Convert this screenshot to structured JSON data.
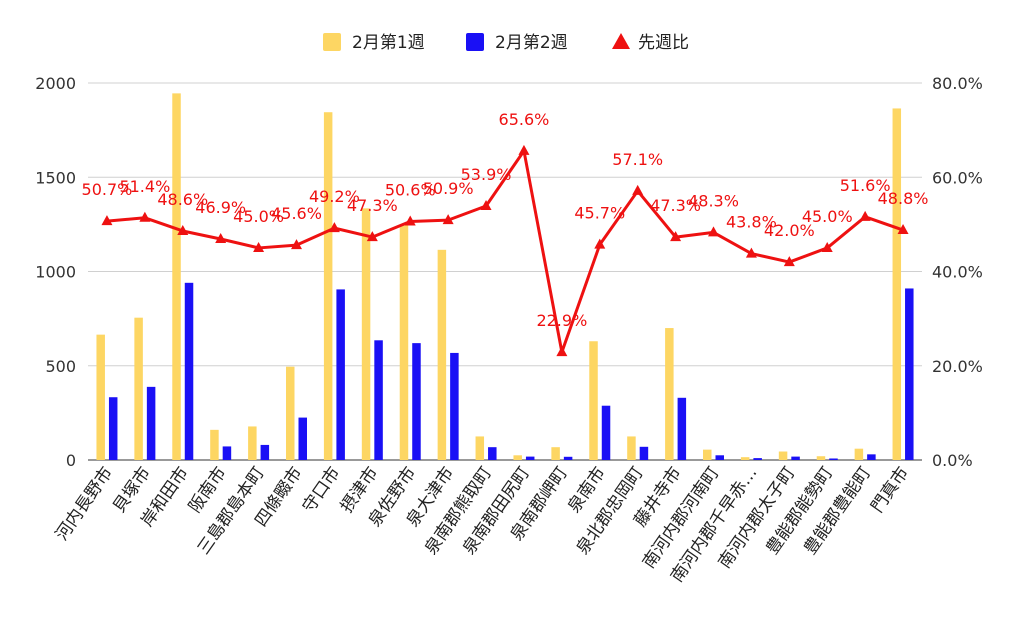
{
  "chart_data": {
    "type": "bar",
    "categories": [
      "河内長野市",
      "貝塚市",
      "岸和田市",
      "阪南市",
      "三島郡島本町",
      "四條畷市",
      "守口市",
      "摂津市",
      "泉佐野市",
      "泉大津市",
      "泉南郡熊取町",
      "泉南郡田尻町",
      "泉南郡岬町",
      "泉南市",
      "泉北郡忠岡町",
      "藤井寺市",
      "南河内郡河南町",
      "南河内郡千早赤…",
      "南河内郡太子町",
      "豊能郡能勢町",
      "豊能郡豊能町",
      "門真市"
    ],
    "series": [
      {
        "name": "2月第1週",
        "type": "bar",
        "axis": "left",
        "color": "#fdd663",
        "values": [
          665,
          755,
          1945,
          160,
          178,
          495,
          1845,
          1335,
          1245,
          1115,
          125,
          25,
          68,
          630,
          125,
          700,
          55,
          15,
          45,
          20,
          60,
          1865
        ]
      },
      {
        "name": "2月第2週",
        "type": "bar",
        "axis": "left",
        "color": "#1a10f5",
        "values": [
          333,
          388,
          940,
          72,
          80,
          225,
          905,
          635,
          620,
          568,
          68,
          18,
          17,
          288,
          70,
          330,
          25,
          10,
          18,
          8,
          30,
          910
        ]
      },
      {
        "name": "先週比",
        "type": "line",
        "axis": "right",
        "color": "#ee1111",
        "values": [
          50.7,
          51.4,
          48.6,
          46.9,
          45.0,
          45.6,
          49.2,
          47.3,
          50.6,
          50.9,
          53.9,
          65.6,
          22.9,
          45.7,
          57.1,
          47.3,
          48.3,
          43.8,
          42.0,
          45.0,
          51.6,
          48.8
        ],
        "labels": [
          "50.7%",
          "51.4%",
          "48.6%",
          "46.9%",
          "45.0%",
          "45.6%",
          "49.2%",
          "47.3%",
          "50.6%",
          "50.9%",
          "53.9%",
          "65.6%",
          "22.9%",
          "45.7%",
          "57.1%",
          "47.3%",
          "48.3%",
          "43.8%",
          "42.0%",
          "45.0%",
          "51.6%",
          "48.8%"
        ]
      }
    ],
    "left_axis": {
      "ylim": [
        0,
        2000
      ],
      "ticks": [
        0,
        500,
        1000,
        1500,
        2000
      ],
      "tick_labels": [
        "0",
        "500",
        "1000",
        "1500",
        "2000"
      ]
    },
    "right_axis": {
      "ylim": [
        0,
        80
      ],
      "ticks": [
        0,
        20,
        40,
        60,
        80
      ],
      "tick_labels": [
        "0.0%",
        "20.0%",
        "40.0%",
        "60.0%",
        "80.0%"
      ]
    },
    "legend_position": "top",
    "grid": true
  }
}
